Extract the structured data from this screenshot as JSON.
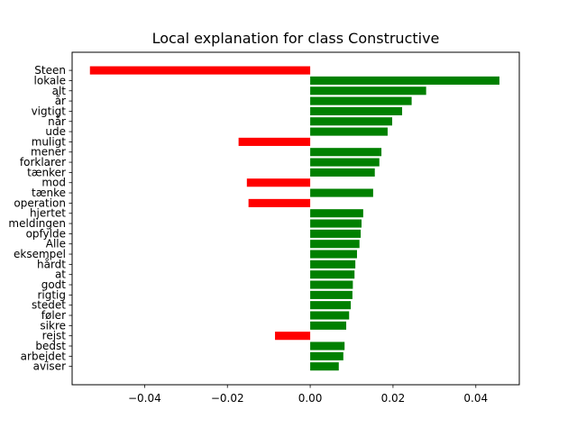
{
  "chart_data": {
    "type": "bar",
    "orientation": "horizontal",
    "title": "Local explanation for class Constructive",
    "xlabel": "",
    "ylabel": "",
    "xlim": [
      -0.0575,
      0.0505
    ],
    "xticks": [
      -0.04,
      -0.02,
      0.0,
      0.02,
      0.04
    ],
    "xtick_labels": [
      "−0.04",
      "−0.02",
      "0.00",
      "0.02",
      "0.04"
    ],
    "grid": false,
    "positive_color": "#008000",
    "negative_color": "#ff0000",
    "categories": [
      "Steen",
      "lokale",
      "alt",
      "år",
      "vigtigt",
      "når",
      "ude",
      "muligt",
      "mener",
      "forklarer",
      "tænker",
      "mod",
      "tænke",
      "operation",
      "hjertet",
      "meldingen",
      "opfylde",
      "Alle",
      "eksempel",
      "hårdt",
      "at",
      "godt",
      "rigtig",
      "stedet",
      "føler",
      "sikre",
      "rejst",
      "bedst",
      "arbejdet",
      "aviser"
    ],
    "values": [
      -0.0532,
      0.0457,
      0.028,
      0.0245,
      0.0222,
      0.0198,
      0.0187,
      -0.0173,
      0.0172,
      0.0167,
      0.0156,
      -0.0153,
      0.0152,
      -0.0149,
      0.0128,
      0.0124,
      0.0122,
      0.0119,
      0.0113,
      0.0109,
      0.0107,
      0.0103,
      0.0102,
      0.0098,
      0.0094,
      0.0087,
      -0.0085,
      0.0083,
      0.008,
      0.0069
    ]
  }
}
